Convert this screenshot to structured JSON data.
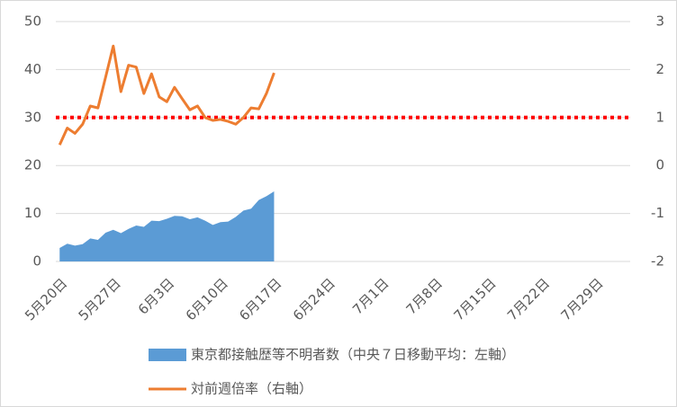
{
  "chart_data": {
    "type": "area-line",
    "categories": [
      "5月20日",
      null,
      null,
      null,
      null,
      null,
      null,
      "5月27日",
      null,
      null,
      null,
      null,
      null,
      null,
      "6月3日",
      null,
      null,
      null,
      null,
      null,
      null,
      "6月10日",
      null,
      null,
      null,
      null,
      null,
      null,
      "6月17日",
      null,
      null,
      null,
      null,
      null,
      null,
      "6月24日",
      null,
      null,
      null,
      null,
      null,
      null,
      "7月1日",
      null,
      null,
      null,
      null,
      null,
      null,
      "7月8日",
      null,
      null,
      null,
      null,
      null,
      null,
      "7月15日",
      null,
      null,
      null,
      null,
      null,
      null,
      "7月22日",
      null,
      null,
      null,
      null,
      null,
      null,
      "7月29日",
      null,
      null,
      null,
      null
    ],
    "series": [
      {
        "name": "東京都接触歴等不明者数（中央７日移動平均：左軸）",
        "color": "#5b9bd5",
        "kind": "area",
        "values": [
          2.8,
          3.7,
          3.3,
          3.6,
          4.8,
          4.5,
          6.0,
          6.6,
          5.9,
          6.8,
          7.5,
          7.2,
          8.5,
          8.4,
          8.9,
          9.5,
          9.4,
          8.8,
          9.2,
          8.5,
          7.6,
          8.2,
          8.3,
          9.3,
          10.6,
          11.0,
          12.8,
          13.6,
          14.6,
          null,
          null,
          null,
          null,
          null,
          null,
          null,
          null,
          null,
          null,
          null,
          null,
          null,
          null,
          null,
          null,
          null,
          null,
          null,
          null,
          null,
          null,
          null,
          null,
          null,
          null,
          null,
          null,
          null,
          null,
          null,
          null,
          null,
          null,
          null,
          null,
          null,
          null,
          null,
          null,
          null,
          null,
          null,
          null,
          null,
          null
        ]
      },
      {
        "name": "対前週倍率（右軸）",
        "color": "#ed7d31",
        "kind": "line",
        "axis": "y2",
        "values": [
          0.43,
          0.78,
          0.67,
          0.86,
          1.24,
          1.2,
          1.84,
          2.49,
          1.54,
          2.09,
          2.05,
          1.5,
          1.91,
          1.43,
          1.33,
          1.63,
          1.39,
          1.16,
          1.24,
          1.0,
          0.94,
          0.96,
          0.92,
          0.86,
          1.0,
          1.2,
          1.18,
          1.5,
          1.93,
          null,
          null,
          null,
          null,
          null,
          null,
          null,
          null,
          null,
          null,
          null,
          null,
          null,
          null,
          null,
          null,
          null,
          null,
          null,
          null,
          null,
          null,
          null,
          null,
          null,
          null,
          null,
          null,
          null,
          null,
          null,
          null,
          null,
          null,
          null,
          null,
          null,
          null,
          null,
          null,
          null,
          null,
          null,
          null,
          null,
          null
        ]
      }
    ],
    "ylim": [
      0,
      50
    ],
    "yticks": [
      0,
      10,
      20,
      30,
      40,
      50
    ],
    "y2lim": [
      -2,
      3
    ],
    "y2ticks": [
      -2,
      -1,
      0,
      1,
      2,
      3
    ],
    "reference_line": {
      "value": 1,
      "axis": "y2",
      "color": "#ff0000"
    },
    "grid": true,
    "legend": "bottom"
  }
}
